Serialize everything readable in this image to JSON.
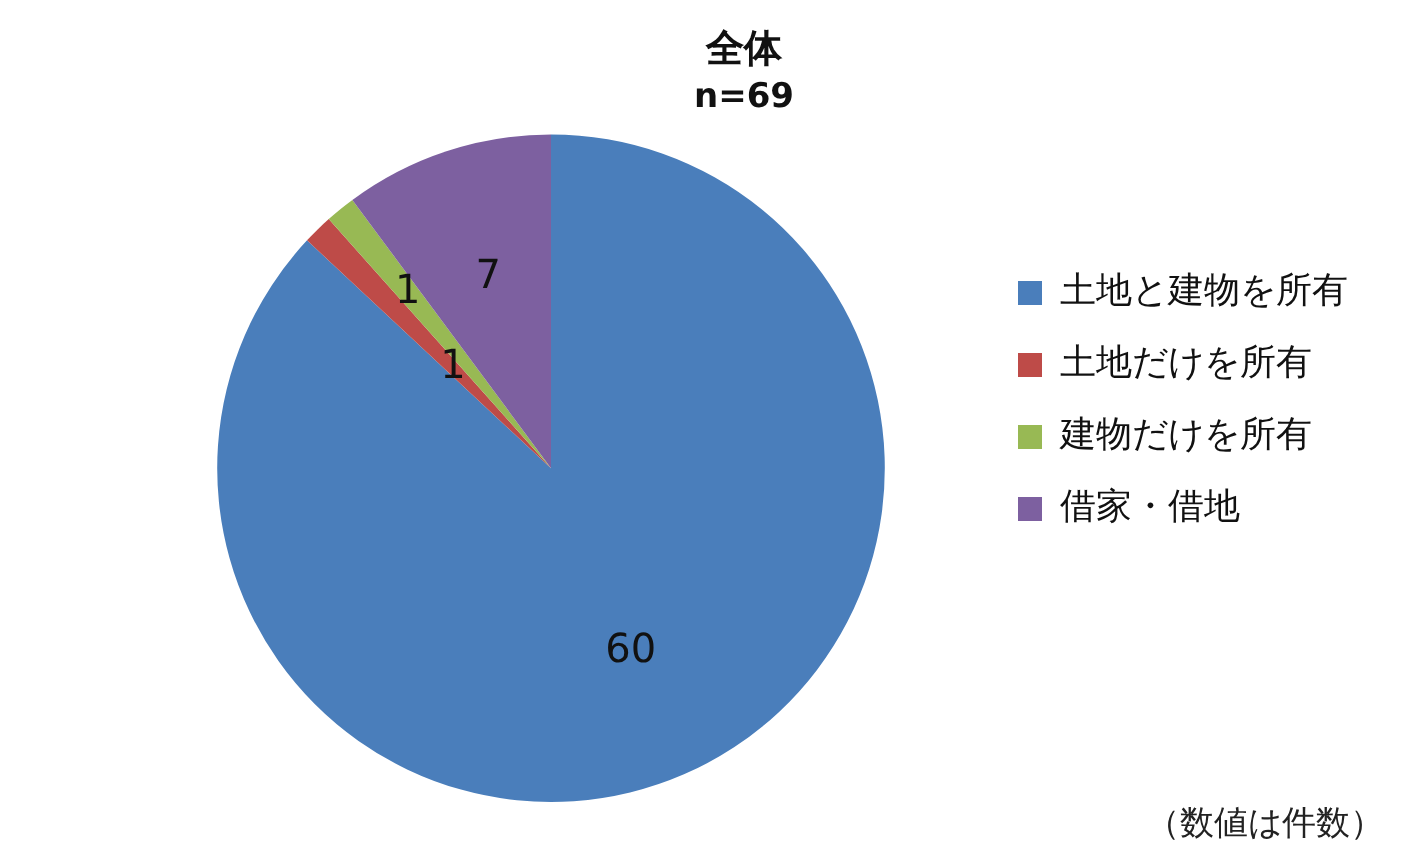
{
  "chart_data": {
    "type": "pie",
    "title": "全体",
    "subtitle": "n=69",
    "categories": [
      "土地と建物を所有",
      "土地だけを所有",
      "建物だけを所有",
      "借家・借地"
    ],
    "values": [
      60,
      1,
      1,
      7
    ],
    "colors": [
      "#4a7ebb",
      "#be4b48",
      "#98b954",
      "#7d60a0"
    ],
    "data_labels": true,
    "legend": "right",
    "annotations": [
      "（数値は件数）"
    ]
  }
}
